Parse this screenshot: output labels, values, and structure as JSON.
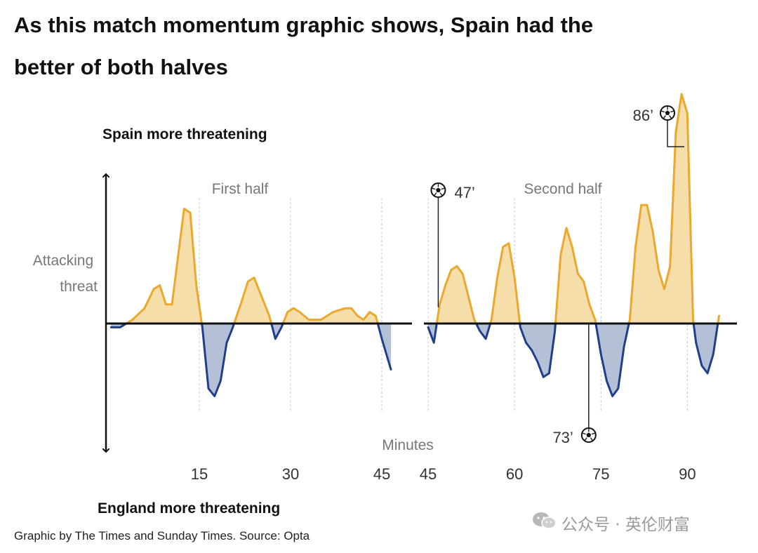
{
  "title": "As this match momentum graphic shows, Spain had the better of both halves",
  "source": "Graphic by The Times and Sunday Times. Source: Opta",
  "watermark": "公众号 · 英伦财富",
  "colors": {
    "spain_fill": "#f6deab",
    "spain_line": "#eba82c",
    "england_fill": "#b4c0d6",
    "england_line": "#1f3f8a",
    "axis": "#111111"
  },
  "chart_data": {
    "type": "area",
    "title": "As this match momentum graphic shows, Spain had the better of both halves",
    "top_label": "Spain more threatening",
    "bottom_label": "England more threatening",
    "ylabel": "Attacking threat",
    "xlabel": "Minutes",
    "series": [
      {
        "name": "First half",
        "xlim": [
          0,
          48
        ],
        "x_ticks": [
          15,
          30,
          45
        ],
        "points": [
          [
            0.5,
            -0.01
          ],
          [
            2,
            -0.01
          ],
          [
            4,
            0.01
          ],
          [
            6,
            0.04
          ],
          [
            7.5,
            0.09
          ],
          [
            8.5,
            0.1
          ],
          [
            9.5,
            0.05
          ],
          [
            10.5,
            0.05
          ],
          [
            12.5,
            0.3
          ],
          [
            13.5,
            0.29
          ],
          [
            14.5,
            0.1
          ],
          [
            15.5,
            -0.01
          ],
          [
            16.5,
            -0.17
          ],
          [
            17.5,
            -0.19
          ],
          [
            18.5,
            -0.15
          ],
          [
            19.5,
            -0.05
          ],
          [
            20.5,
            -0.01
          ],
          [
            22,
            0.06
          ],
          [
            23,
            0.11
          ],
          [
            24,
            0.12
          ],
          [
            25,
            0.08
          ],
          [
            26.5,
            0.02
          ],
          [
            27.5,
            -0.04
          ],
          [
            28.5,
            -0.01
          ],
          [
            29.5,
            0.03
          ],
          [
            30.5,
            0.04
          ],
          [
            31.5,
            0.03
          ],
          [
            33,
            0.01
          ],
          [
            35,
            0.01
          ],
          [
            37,
            0.03
          ],
          [
            39,
            0.04
          ],
          [
            40,
            0.04
          ],
          [
            41,
            0.02
          ],
          [
            42,
            0.01
          ],
          [
            43,
            0.03
          ],
          [
            44,
            0.02
          ],
          [
            45,
            -0.04
          ],
          [
            46.5,
            -0.12
          ]
        ]
      },
      {
        "name": "Second half",
        "xlim": [
          45,
          98
        ],
        "x_ticks": [
          45,
          60,
          75,
          90
        ],
        "points": [
          [
            45,
            -0.01
          ],
          [
            46,
            -0.05
          ],
          [
            47,
            0.05
          ],
          [
            48,
            0.1
          ],
          [
            49,
            0.14
          ],
          [
            50,
            0.15
          ],
          [
            51,
            0.13
          ],
          [
            52,
            0.07
          ],
          [
            53,
            0.01
          ],
          [
            54,
            -0.02
          ],
          [
            55,
            -0.04
          ],
          [
            56,
            0.01
          ],
          [
            57,
            0.12
          ],
          [
            58,
            0.2
          ],
          [
            59,
            0.21
          ],
          [
            60,
            0.12
          ],
          [
            61,
            -0.01
          ],
          [
            62,
            -0.05
          ],
          [
            63,
            -0.07
          ],
          [
            64,
            -0.1
          ],
          [
            65,
            -0.14
          ],
          [
            66,
            -0.13
          ],
          [
            67,
            -0.02
          ],
          [
            68,
            0.18
          ],
          [
            69,
            0.25
          ],
          [
            70,
            0.2
          ],
          [
            71,
            0.13
          ],
          [
            72,
            0.11
          ],
          [
            73,
            0.05
          ],
          [
            74,
            0.01
          ],
          [
            75,
            -0.08
          ],
          [
            76,
            -0.15
          ],
          [
            77,
            -0.19
          ],
          [
            78,
            -0.17
          ],
          [
            79,
            -0.06
          ],
          [
            80,
            0.01
          ],
          [
            81,
            0.2
          ],
          [
            82,
            0.31
          ],
          [
            83,
            0.31
          ],
          [
            84,
            0.24
          ],
          [
            85,
            0.14
          ],
          [
            86,
            0.09
          ],
          [
            87,
            0.15
          ],
          [
            88,
            0.5
          ],
          [
            89,
            0.6
          ],
          [
            90,
            0.55
          ],
          [
            91,
            0.01
          ],
          [
            91.5,
            -0.05
          ],
          [
            92.5,
            -0.11
          ],
          [
            93.5,
            -0.13
          ],
          [
            94.5,
            -0.08
          ],
          [
            95.5,
            0.02
          ]
        ]
      }
    ],
    "goals": [
      {
        "minute": 47,
        "label": "47’"
      },
      {
        "minute": 73,
        "label": "73’"
      },
      {
        "minute": 86,
        "label": "86’"
      }
    ]
  }
}
